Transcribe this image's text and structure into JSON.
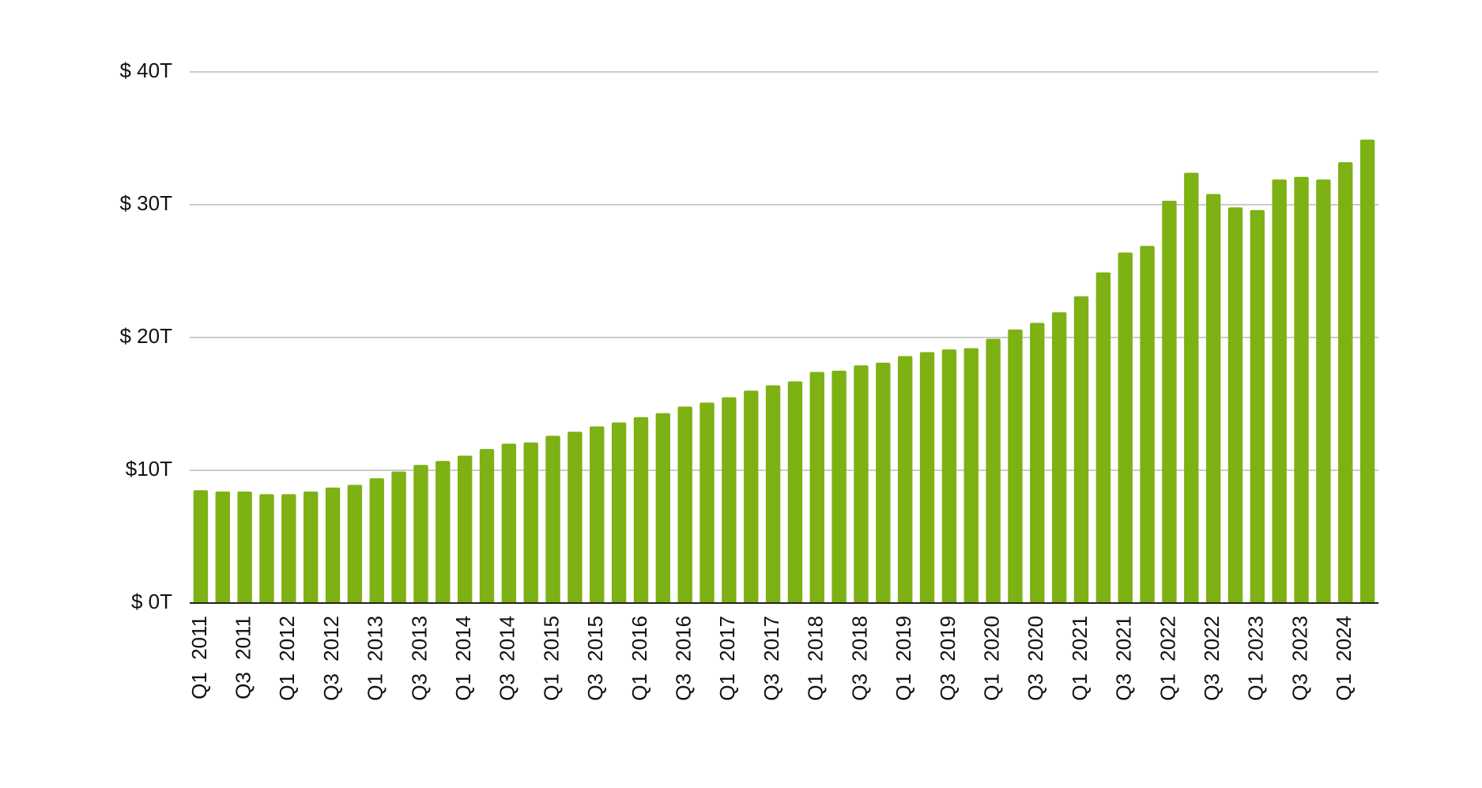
{
  "chart_data": {
    "type": "bar",
    "categories": [
      "Q1 2011",
      null,
      "Q3 2011",
      null,
      "Q1 2012",
      null,
      "Q3 2012",
      null,
      "Q1 2013",
      null,
      "Q3 2013",
      null,
      "Q1 2014",
      null,
      "Q3 2014",
      null,
      "Q1 2015",
      null,
      "Q3 2015",
      null,
      "Q1 2016",
      null,
      "Q3 2016",
      null,
      "Q1 2017",
      null,
      "Q3 2017",
      null,
      "Q1 2018",
      null,
      "Q3 2018",
      null,
      "Q1 2019",
      null,
      "Q3 2019",
      null,
      "Q1 2020",
      null,
      "Q3 2020",
      null,
      "Q1 2021",
      null,
      "Q3 2021",
      null,
      "Q1 2022",
      null,
      "Q3 2022",
      null,
      "Q1 2023",
      null,
      "Q3 2023",
      null,
      "Q1 2024",
      null
    ],
    "values": [
      8.5,
      8.4,
      8.4,
      8.2,
      8.2,
      8.4,
      8.7,
      8.9,
      9.4,
      9.9,
      10.4,
      10.7,
      11.1,
      11.6,
      12.0,
      12.1,
      12.6,
      12.9,
      13.3,
      13.6,
      14.0,
      14.3,
      14.8,
      15.1,
      15.5,
      16.0,
      16.4,
      16.7,
      17.4,
      17.5,
      17.9,
      18.1,
      18.6,
      18.9,
      19.1,
      19.2,
      19.9,
      20.6,
      21.1,
      21.9,
      23.1,
      24.9,
      26.4,
      26.9,
      30.3,
      32.4,
      30.8,
      29.8,
      29.6,
      31.9,
      32.1,
      31.9,
      33.2,
      34.9
    ],
    "color": "#7db114",
    "ylim": [
      0,
      40
    ],
    "yticks": [
      {
        "value": 0,
        "label": "$ 0T"
      },
      {
        "value": 10,
        "label": "$10T"
      },
      {
        "value": 20,
        "label": "$ 20T"
      },
      {
        "value": 30,
        "label": "$ 30T"
      },
      {
        "value": 40,
        "label": "$ 40T"
      }
    ],
    "grid": true
  }
}
